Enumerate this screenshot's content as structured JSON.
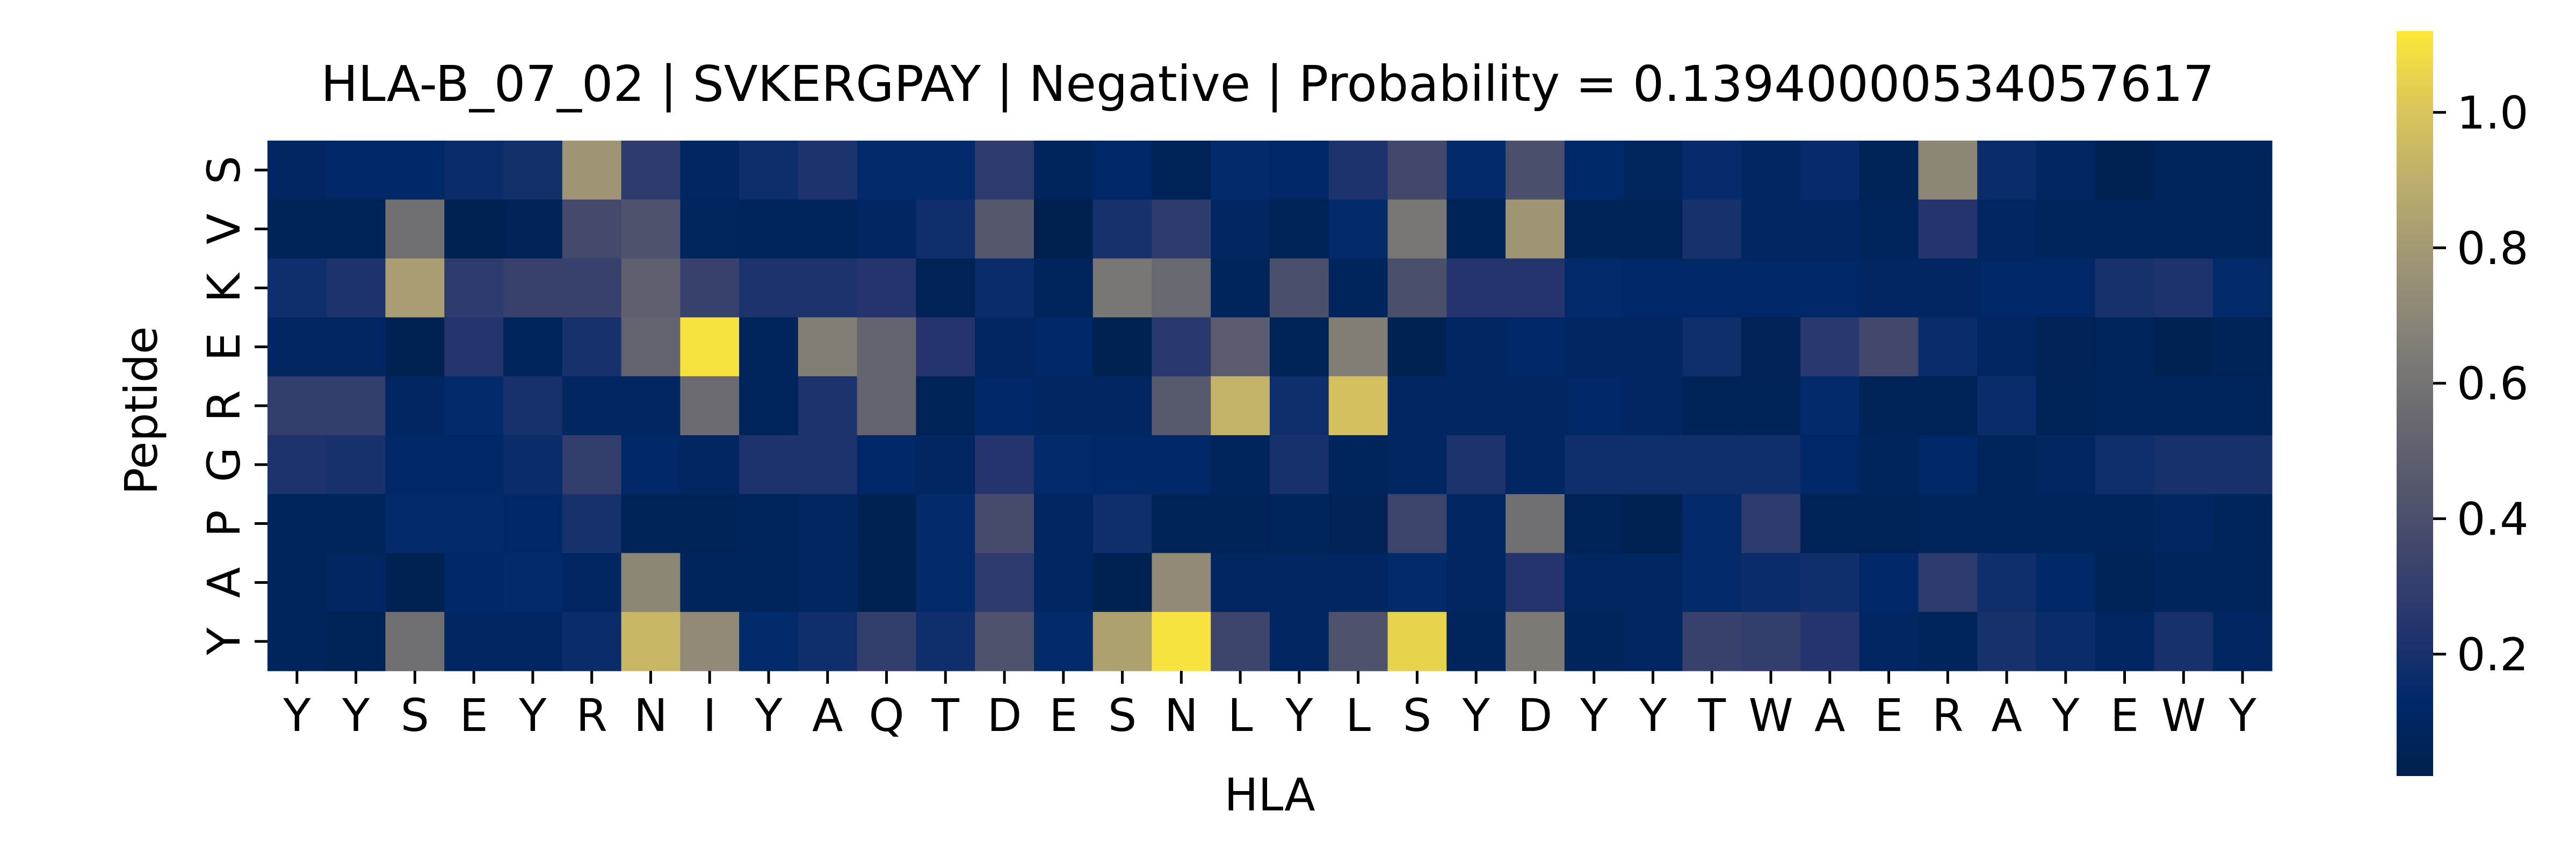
{
  "chart_data": {
    "type": "heatmap",
    "title": "HLA-B_07_02 | SVKERGPAY | Negative | Probability = 0.13940000534057617",
    "xlabel": "HLA",
    "ylabel": "Peptide",
    "x_categories": [
      "Y",
      "Y",
      "S",
      "E",
      "Y",
      "R",
      "N",
      "I",
      "Y",
      "A",
      "Q",
      "T",
      "D",
      "E",
      "S",
      "N",
      "L",
      "Y",
      "L",
      "S",
      "Y",
      "D",
      "Y",
      "Y",
      "T",
      "W",
      "A",
      "E",
      "R",
      "A",
      "Y",
      "E",
      "W",
      "Y"
    ],
    "y_categories": [
      "S",
      "V",
      "K",
      "E",
      "R",
      "G",
      "P",
      "A",
      "Y"
    ],
    "values": [
      [
        0.1,
        0.12,
        0.12,
        0.16,
        0.19,
        0.78,
        0.28,
        0.1,
        0.17,
        0.22,
        0.14,
        0.14,
        0.28,
        0.08,
        0.12,
        0.06,
        0.14,
        0.12,
        0.22,
        0.36,
        0.14,
        0.4,
        0.13,
        0.09,
        0.15,
        0.1,
        0.15,
        0.06,
        0.7,
        0.16,
        0.1,
        0.04,
        0.08,
        0.08
      ],
      [
        0.06,
        0.06,
        0.58,
        0.04,
        0.05,
        0.37,
        0.42,
        0.09,
        0.08,
        0.08,
        0.1,
        0.18,
        0.45,
        0.03,
        0.2,
        0.28,
        0.1,
        0.06,
        0.14,
        0.62,
        0.06,
        0.78,
        0.06,
        0.06,
        0.2,
        0.1,
        0.1,
        0.08,
        0.24,
        0.1,
        0.08,
        0.08,
        0.08,
        0.08
      ],
      [
        0.18,
        0.22,
        0.82,
        0.28,
        0.32,
        0.32,
        0.5,
        0.32,
        0.22,
        0.22,
        0.24,
        0.05,
        0.16,
        0.08,
        0.62,
        0.54,
        0.08,
        0.4,
        0.08,
        0.4,
        0.24,
        0.24,
        0.14,
        0.12,
        0.12,
        0.12,
        0.12,
        0.1,
        0.1,
        0.12,
        0.12,
        0.2,
        0.22,
        0.14
      ],
      [
        0.1,
        0.1,
        0.04,
        0.24,
        0.08,
        0.2,
        0.52,
        1.1,
        0.08,
        0.66,
        0.52,
        0.24,
        0.1,
        0.12,
        0.04,
        0.26,
        0.48,
        0.06,
        0.66,
        0.04,
        0.1,
        0.12,
        0.1,
        0.1,
        0.18,
        0.05,
        0.26,
        0.36,
        0.16,
        0.1,
        0.05,
        0.08,
        0.04,
        0.06
      ],
      [
        0.3,
        0.3,
        0.1,
        0.14,
        0.2,
        0.1,
        0.1,
        0.56,
        0.08,
        0.22,
        0.52,
        0.06,
        0.12,
        0.1,
        0.1,
        0.46,
        0.92,
        0.18,
        0.98,
        0.1,
        0.1,
        0.1,
        0.12,
        0.1,
        0.06,
        0.06,
        0.14,
        0.06,
        0.06,
        0.16,
        0.06,
        0.08,
        0.08,
        0.08
      ],
      [
        0.22,
        0.2,
        0.12,
        0.12,
        0.16,
        0.3,
        0.12,
        0.1,
        0.22,
        0.22,
        0.12,
        0.1,
        0.24,
        0.14,
        0.12,
        0.12,
        0.08,
        0.2,
        0.08,
        0.1,
        0.22,
        0.1,
        0.18,
        0.18,
        0.18,
        0.18,
        0.12,
        0.08,
        0.12,
        0.08,
        0.1,
        0.18,
        0.2,
        0.2
      ],
      [
        0.08,
        0.08,
        0.14,
        0.14,
        0.12,
        0.2,
        0.06,
        0.06,
        0.08,
        0.1,
        0.04,
        0.14,
        0.38,
        0.1,
        0.18,
        0.06,
        0.06,
        0.08,
        0.05,
        0.34,
        0.1,
        0.58,
        0.06,
        0.04,
        0.14,
        0.28,
        0.06,
        0.06,
        0.08,
        0.08,
        0.08,
        0.08,
        0.1,
        0.08
      ],
      [
        0.08,
        0.1,
        0.04,
        0.12,
        0.14,
        0.1,
        0.7,
        0.08,
        0.08,
        0.1,
        0.04,
        0.14,
        0.28,
        0.1,
        0.04,
        0.72,
        0.1,
        0.1,
        0.1,
        0.14,
        0.1,
        0.24,
        0.1,
        0.1,
        0.14,
        0.16,
        0.18,
        0.12,
        0.28,
        0.18,
        0.12,
        0.06,
        0.08,
        0.08
      ],
      [
        0.08,
        0.06,
        0.58,
        0.1,
        0.1,
        0.16,
        0.94,
        0.72,
        0.14,
        0.18,
        0.3,
        0.18,
        0.42,
        0.14,
        0.84,
        1.1,
        0.34,
        0.1,
        0.42,
        1.05,
        0.08,
        0.64,
        0.08,
        0.1,
        0.32,
        0.3,
        0.24,
        0.1,
        0.08,
        0.2,
        0.16,
        0.1,
        0.2,
        0.1
      ]
    ],
    "colormap": "cividis",
    "colorbar": {
      "ticks": [
        0.2,
        0.4,
        0.6,
        0.8,
        1.0
      ],
      "tick_labels": [
        "0.2",
        "0.4",
        "0.6",
        "0.8",
        "1.0"
      ],
      "range": [
        0.02,
        1.12
      ]
    },
    "grid": false,
    "legend": "colorbar-right"
  }
}
